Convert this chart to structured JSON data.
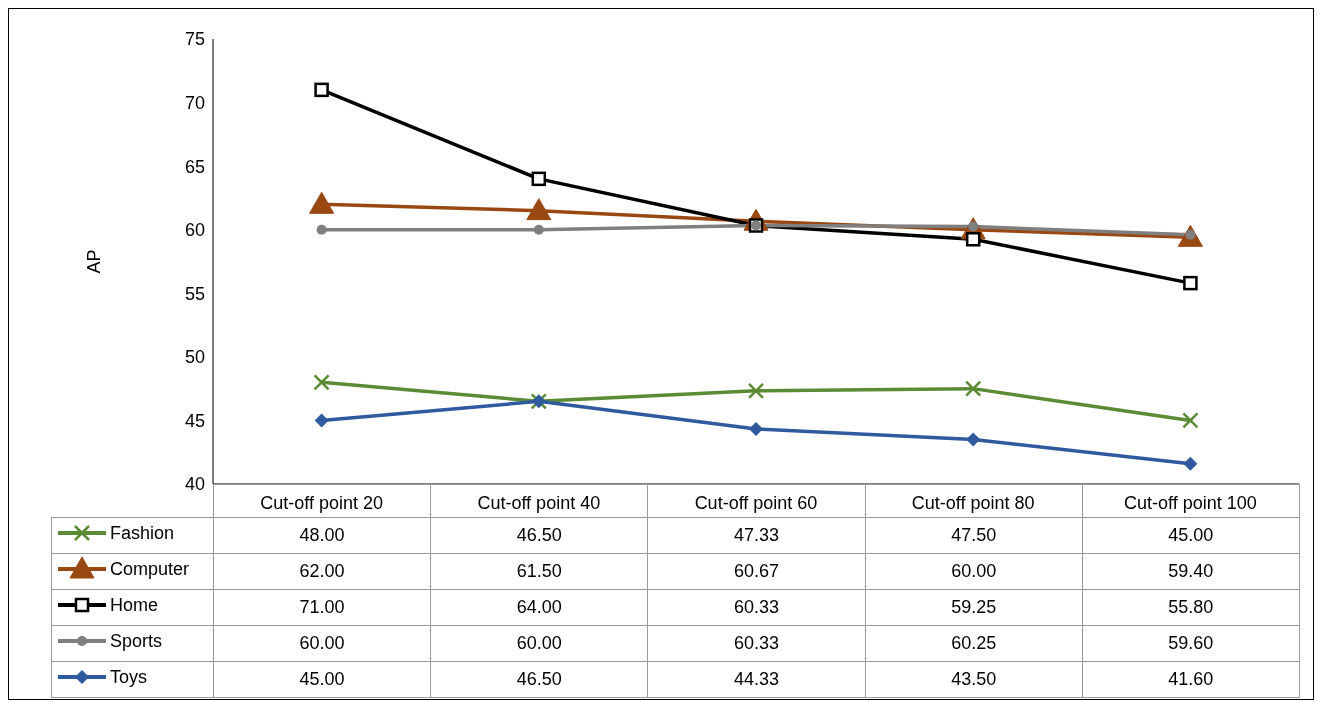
{
  "chart_data": {
    "type": "line",
    "ylabel": "AP",
    "categories": [
      "Cut-off point 20",
      "Cut-off point 40",
      "Cut-off point 60",
      "Cut-off point 80",
      "Cut-off point 100"
    ],
    "ylim": [
      40,
      75
    ],
    "yticks": [
      40,
      45,
      50,
      55,
      60,
      65,
      70,
      75
    ],
    "grid": false,
    "legend": "bottom left",
    "line_style": "solid",
    "series": [
      {
        "name": "Fashion",
        "color": "#5b8c35",
        "marker": "cross",
        "values": [
          48,
          46.5,
          47.33,
          47.5,
          45
        ],
        "value_labels": [
          "48.00",
          "46.50",
          "47.33",
          "47.50",
          "45.00"
        ]
      },
      {
        "name": "Computer",
        "color": "#9a4811",
        "marker": "triangle",
        "values": [
          62,
          61.5,
          60.67,
          60,
          59.4
        ],
        "value_labels": [
          "62.00",
          "61.50",
          "60.67",
          "60.00",
          "59.40"
        ]
      },
      {
        "name": "Home",
        "color": "#000000",
        "marker": "square",
        "values": [
          71,
          64,
          60.33,
          59.25,
          55.8
        ],
        "value_labels": [
          "71.00",
          "64.00",
          "60.33",
          "59.25",
          "55.80"
        ]
      },
      {
        "name": "Sports",
        "color": "#7f7f7f",
        "marker": "circle",
        "values": [
          60,
          60,
          60.33,
          60.25,
          59.6
        ],
        "value_labels": [
          "60.00",
          "60.00",
          "60.33",
          "60.25",
          "59.60"
        ]
      },
      {
        "name": "Toys",
        "color": "#2f5a9e",
        "marker": "diamond",
        "values": [
          45,
          46.5,
          44.33,
          43.5,
          41.6
        ],
        "value_labels": [
          "45.00",
          "46.50",
          "44.33",
          "43.50",
          "41.60"
        ]
      }
    ]
  }
}
